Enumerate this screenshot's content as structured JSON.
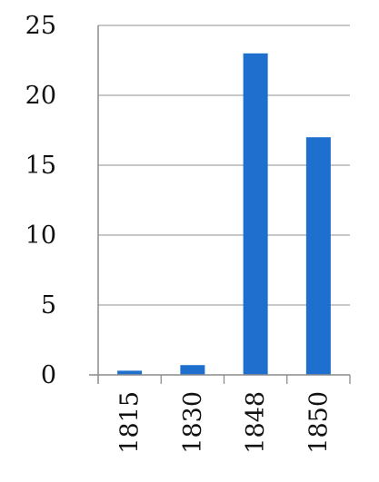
{
  "chart_data": {
    "type": "bar",
    "categories": [
      "1815",
      "1830",
      "1848",
      "1850"
    ],
    "values": [
      0.3,
      0.7,
      23,
      17
    ],
    "ylim": [
      0,
      25
    ],
    "yticks": [
      0,
      5,
      10,
      15,
      20,
      25
    ],
    "grid": true,
    "legend": "none",
    "colors": {
      "bar": "#1f6fce",
      "grid": "#a6a6a6",
      "axis": "#8c8c8c"
    }
  }
}
